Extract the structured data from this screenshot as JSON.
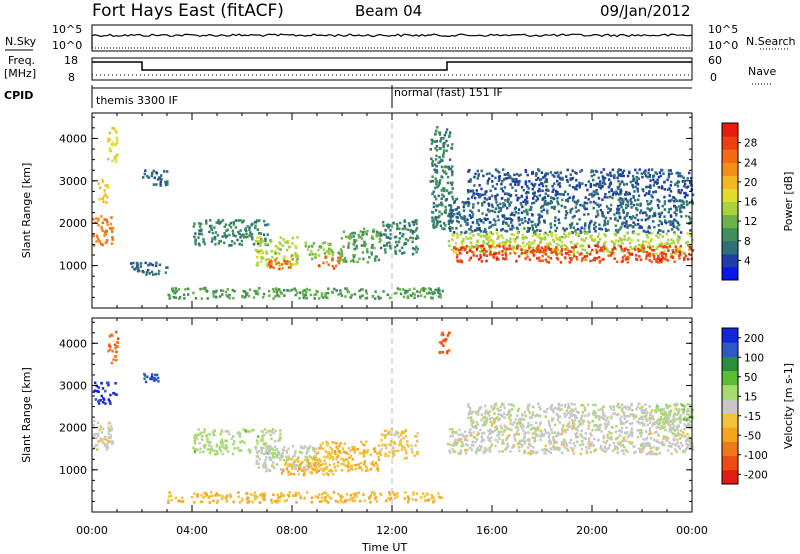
{
  "header": {
    "station": "Fort Hays East (fitACF)",
    "beam": "Beam 04",
    "date": "09/Jan/2012"
  },
  "top_panels": {
    "nsky_label": "N.Sky",
    "nsky_ticks": [
      "10^5",
      "10^0"
    ],
    "nsearch_label": "N.Search",
    "nsearch_ticks": [
      "10^5",
      "10^0"
    ],
    "freq_label": "Freq.",
    "freq_unit": "[MHz]",
    "freq_ticks": [
      "18",
      "8"
    ],
    "nave_label": "Nave",
    "nave_ticks": [
      "60",
      "0"
    ],
    "cpid_label": "CPID",
    "cpid_modes": [
      {
        "label": "themis 3300 IF",
        "start_hour": 0,
        "end_hour": 12
      },
      {
        "label": "normal (fast) 151 IF",
        "start_hour": 12,
        "end_hour": 24
      }
    ],
    "freq_segments": [
      {
        "start_hour": 0,
        "end_hour": 2.0,
        "level": "high"
      },
      {
        "start_hour": 2.0,
        "end_hour": 14.2,
        "level": "low"
      },
      {
        "start_hour": 14.2,
        "end_hour": 24,
        "level": "high"
      }
    ]
  },
  "chart_data": [
    {
      "type": "heatmap",
      "name": "power",
      "xlabel": "",
      "ylabel": "Slant Range [km]",
      "xlim": [
        0,
        24
      ],
      "ylim": [
        0,
        4600
      ],
      "y_ticks": [
        1000,
        2000,
        3000,
        4000
      ],
      "x_tick_hours": [
        0,
        4,
        8,
        12,
        16,
        20,
        24
      ],
      "colorbar": {
        "label": "Power [dB]",
        "range": [
          0,
          30
        ],
        "ticks": [
          "4",
          "8",
          "12",
          "16",
          "20",
          "24",
          "28"
        ],
        "colors": [
          "#0a17e8",
          "#1f3ea8",
          "#2e6f7a",
          "#3f8f5e",
          "#6db14a",
          "#a8d33f",
          "#e0dd2a",
          "#f4b622",
          "#f58d1a",
          "#f26a14",
          "#ee3f10",
          "#e81b0c"
        ]
      },
      "echo_regions": [
        {
          "t0": 0.0,
          "t1": 0.8,
          "r0": 1500,
          "r1": 2200,
          "value": 22
        },
        {
          "t0": 0.2,
          "t1": 0.6,
          "r0": 2500,
          "r1": 3100,
          "value": 18
        },
        {
          "t0": 0.6,
          "t1": 1.0,
          "r0": 3400,
          "r1": 4300,
          "value": 16
        },
        {
          "t0": 2.0,
          "t1": 3.0,
          "r0": 2900,
          "r1": 3300,
          "value": 6
        },
        {
          "t0": 1.5,
          "t1": 3.0,
          "r0": 800,
          "r1": 1100,
          "value": 6
        },
        {
          "t0": 4.0,
          "t1": 7.0,
          "r0": 1500,
          "r1": 2100,
          "value": 8
        },
        {
          "t0": 6.5,
          "t1": 8.2,
          "r0": 1000,
          "r1": 1700,
          "value": 14
        },
        {
          "t0": 7.0,
          "t1": 8.0,
          "r0": 950,
          "r1": 1250,
          "value": 24
        },
        {
          "t0": 8.5,
          "t1": 9.6,
          "r0": 1100,
          "r1": 1600,
          "value": 12
        },
        {
          "t0": 9.0,
          "t1": 9.9,
          "r0": 950,
          "r1": 1250,
          "value": 24
        },
        {
          "t0": 9.8,
          "t1": 11.5,
          "r0": 1100,
          "r1": 1900,
          "value": 10
        },
        {
          "t0": 11.5,
          "t1": 13.0,
          "r0": 1300,
          "r1": 2100,
          "value": 8
        },
        {
          "t0": 13.5,
          "t1": 14.4,
          "r0": 1800,
          "r1": 4300,
          "value": 8
        },
        {
          "t0": 14.2,
          "t1": 24.0,
          "r0": 1800,
          "r1": 2600,
          "value": 6
        },
        {
          "t0": 14.2,
          "t1": 24.0,
          "r0": 1300,
          "r1": 1800,
          "value": 14
        },
        {
          "t0": 14.4,
          "t1": 24.0,
          "r0": 1100,
          "r1": 1500,
          "value": 26
        },
        {
          "t0": 15.0,
          "t1": 24.0,
          "r0": 2600,
          "r1": 3300,
          "value": 5
        },
        {
          "t0": 3.0,
          "t1": 14.0,
          "r0": 250,
          "r1": 500,
          "value": 10
        }
      ]
    },
    {
      "type": "heatmap",
      "name": "velocity",
      "xlabel": "Time UT",
      "ylabel": "Slant Range [km]",
      "xlim": [
        0,
        24
      ],
      "ylim": [
        0,
        4600
      ],
      "y_ticks": [
        1000,
        2000,
        3000,
        4000
      ],
      "x_tick_labels": [
        "00:00",
        "04:00",
        "08:00",
        "12:00",
        "16:00",
        "20:00",
        "00:00"
      ],
      "x_tick_hours": [
        0,
        4,
        8,
        12,
        16,
        20,
        24
      ],
      "colorbar": {
        "label": "Velocity [m s-1]",
        "range": [
          -250,
          250
        ],
        "ticks": [
          "200",
          "100",
          "50",
          "15",
          "-15",
          "-50",
          "-100",
          "-200"
        ],
        "colors": [
          "#1326d6",
          "#2d58c8",
          "#2a8f3a",
          "#5bbd34",
          "#a6dc6d",
          "#c8c8c8",
          "#f2c23a",
          "#f5a51d",
          "#f1781a",
          "#ee4a15",
          "#e41b10"
        ]
      },
      "echo_regions": [
        {
          "t0": 0.0,
          "t1": 0.8,
          "r0": 1500,
          "r1": 2200,
          "value": 0
        },
        {
          "t0": 0.0,
          "t1": 1.0,
          "r0": 2600,
          "r1": 3100,
          "value": 220
        },
        {
          "t0": 0.6,
          "t1": 1.0,
          "r0": 3500,
          "r1": 4300,
          "value": -150
        },
        {
          "t0": 2.0,
          "t1": 2.8,
          "r0": 3100,
          "r1": 3300,
          "value": 180
        },
        {
          "t0": 4.0,
          "t1": 7.5,
          "r0": 1400,
          "r1": 2000,
          "value": 40
        },
        {
          "t0": 6.5,
          "t1": 9.0,
          "r0": 1000,
          "r1": 1600,
          "value": 0
        },
        {
          "t0": 7.5,
          "t1": 9.6,
          "r0": 900,
          "r1": 1300,
          "value": -60
        },
        {
          "t0": 9.0,
          "t1": 11.5,
          "r0": 1000,
          "r1": 1700,
          "value": -60
        },
        {
          "t0": 11.5,
          "t1": 13.0,
          "r0": 1300,
          "r1": 2000,
          "value": -40
        },
        {
          "t0": 13.8,
          "t1": 14.3,
          "r0": 3800,
          "r1": 4300,
          "value": -180
        },
        {
          "t0": 14.2,
          "t1": 24.0,
          "r0": 1400,
          "r1": 2000,
          "value": 0
        },
        {
          "t0": 15.0,
          "t1": 24.0,
          "r0": 2000,
          "r1": 2600,
          "value": 5
        },
        {
          "t0": 22.5,
          "t1": 24.0,
          "r0": 2100,
          "r1": 2600,
          "value": 45
        },
        {
          "t0": 3.0,
          "t1": 14.0,
          "r0": 250,
          "r1": 500,
          "value": -60
        }
      ]
    }
  ]
}
